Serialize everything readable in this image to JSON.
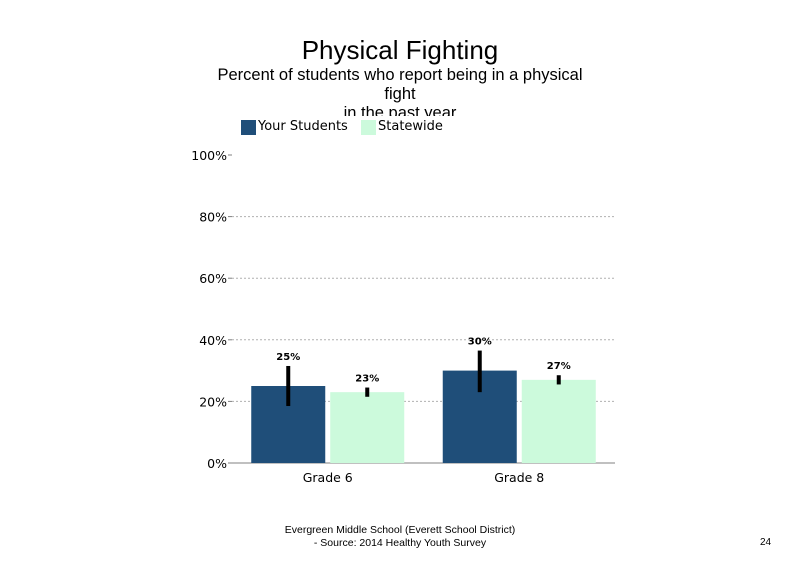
{
  "slide": {
    "title": "Physical Fighting",
    "subtitle_line1": "Percent of students  who report being in a physical",
    "subtitle_line2": "fight",
    "subtitle_line3": "in the past year",
    "footer_line1": "Evergreen Middle School (Everett School District)",
    "footer_line2": "- Source: 2014 Healthy  Youth Survey",
    "page_number": "24"
  },
  "chart_data": {
    "type": "bar",
    "categories": [
      "Grade 6",
      "Grade 8"
    ],
    "series": [
      {
        "name": "Your Students",
        "color": "#1f4e79",
        "values": [
          25,
          30
        ],
        "labels": [
          "25%",
          "30%"
        ],
        "error_low": [
          18.5,
          23
        ],
        "error_high": [
          31.5,
          36.5
        ]
      },
      {
        "name": "Statewide",
        "color": "#ccfadc",
        "values": [
          23,
          27
        ],
        "labels": [
          "23%",
          "27%"
        ],
        "error_low": [
          21.5,
          25.5
        ],
        "error_high": [
          24.5,
          28.5
        ]
      }
    ],
    "ylim": [
      0,
      100
    ],
    "yticks": [
      0,
      20,
      40,
      60,
      80,
      100
    ],
    "ytick_labels": [
      "0%",
      "20%",
      "40%",
      "60%",
      "80%",
      "100%"
    ],
    "grid": true,
    "legend_position": "top-left"
  }
}
